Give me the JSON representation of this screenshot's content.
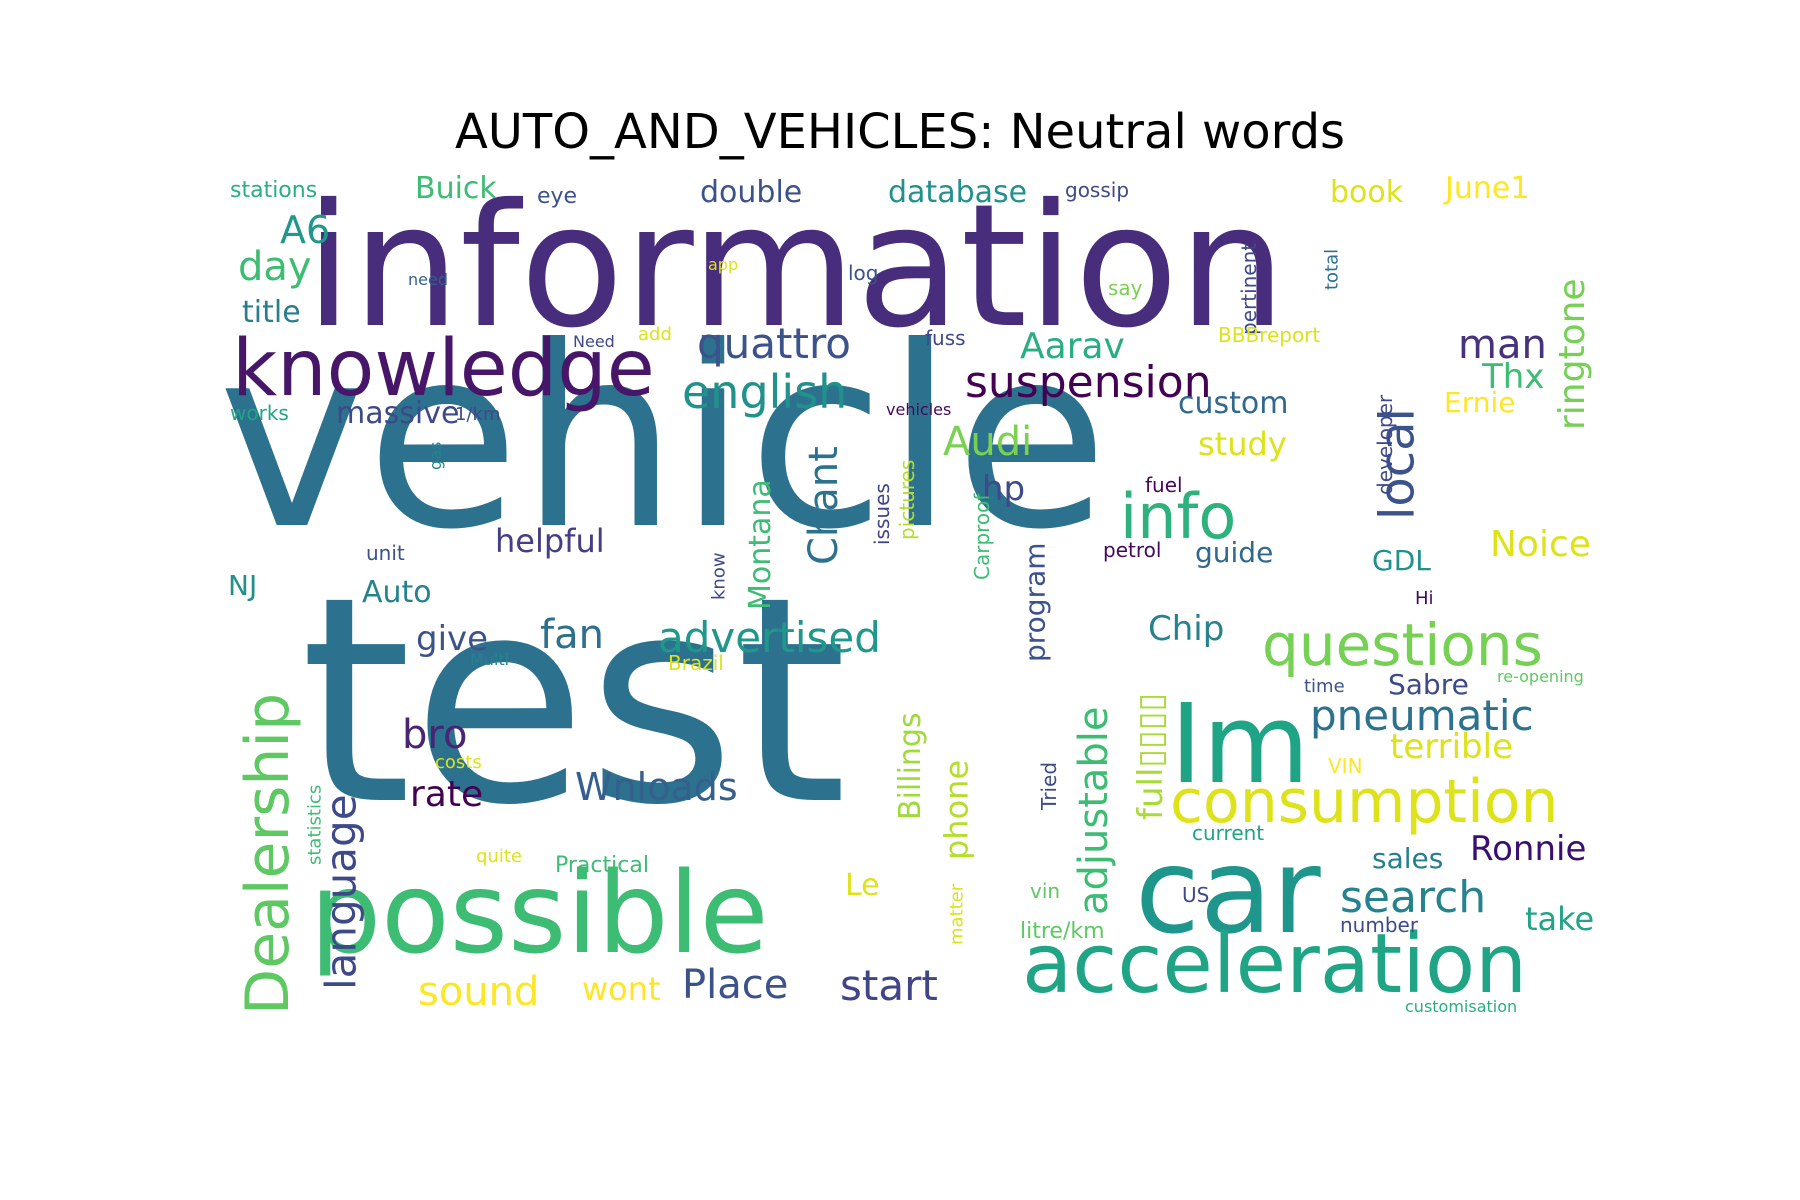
{
  "title": "AUTO_AND_VEHICLES: Neutral words",
  "words": [
    {
      "text": "vehicle",
      "color": "#2c728e"
    },
    {
      "text": "test",
      "color": "#2c728e"
    },
    {
      "text": "information",
      "color": "#472d7b"
    },
    {
      "text": "possible",
      "color": "#3dbc74"
    },
    {
      "text": "car",
      "color": "#1f968b"
    },
    {
      "text": "acceleration",
      "color": "#20a486"
    },
    {
      "text": "Im",
      "color": "#20a486"
    },
    {
      "text": "knowledge",
      "color": "#481668"
    },
    {
      "text": "questions",
      "color": "#75d054"
    },
    {
      "text": "consumption",
      "color": "#dde318"
    },
    {
      "text": "Dealership",
      "color": "#5ec962"
    },
    {
      "text": "info",
      "color": "#2db27d"
    },
    {
      "text": "local",
      "color": "#3b528b"
    },
    {
      "text": "english",
      "color": "#21918c"
    },
    {
      "text": "suspension",
      "color": "#440154"
    },
    {
      "text": "advertised",
      "color": "#1f988b"
    },
    {
      "text": "quattro",
      "color": "#3b528b"
    },
    {
      "text": "pneumatic",
      "color": "#2c728e"
    },
    {
      "text": "search",
      "color": "#26828e"
    },
    {
      "text": "ringtone",
      "color": "#75d054"
    },
    {
      "text": "language",
      "color": "#3e4989"
    },
    {
      "text": "adjustable",
      "color": "#3dbc74"
    },
    {
      "text": "man",
      "color": "#46327e"
    },
    {
      "text": "Chant",
      "color": "#2c728e"
    },
    {
      "text": "sound",
      "color": "#fde725"
    },
    {
      "text": "start",
      "color": "#414487"
    },
    {
      "text": "Place",
      "color": "#3b528b"
    },
    {
      "text": "Wnloads",
      "color": "#355f8d"
    },
    {
      "text": "fan",
      "color": "#2d708e"
    },
    {
      "text": "bro",
      "color": "#482475"
    },
    {
      "text": "rate",
      "color": "#440154"
    },
    {
      "text": "give",
      "color": "#3b528b"
    },
    {
      "text": "Aarav",
      "color": "#29af7f"
    },
    {
      "text": "Audi",
      "color": "#7ad151"
    },
    {
      "text": "day",
      "color": "#3dbc74"
    },
    {
      "text": "A6",
      "color": "#1f988b"
    },
    {
      "text": "title",
      "color": "#277f8e"
    },
    {
      "text": "phone",
      "color": "#b5de2b"
    },
    {
      "text": "Montana",
      "color": "#3dbc74"
    },
    {
      "text": "Billings",
      "color": "#a0da39"
    },
    {
      "text": "terrible",
      "color": "#dde318"
    },
    {
      "text": "full▯▯▯▯",
      "color": "#a8db34"
    },
    {
      "text": "Chip",
      "color": "#26828e"
    },
    {
      "text": "Sabre",
      "color": "#3e4a89"
    },
    {
      "text": "Ronnie",
      "color": "#3b0f70"
    },
    {
      "text": "take",
      "color": "#20a486"
    },
    {
      "text": "Noice",
      "color": "#dde318"
    },
    {
      "text": "custom",
      "color": "#31688e"
    },
    {
      "text": "study",
      "color": "#dde318"
    },
    {
      "text": "Thx",
      "color": "#3dbc74"
    },
    {
      "text": "hp",
      "color": "#3e4989"
    },
    {
      "text": "helpful",
      "color": "#433e85"
    },
    {
      "text": "Auto",
      "color": "#26828e"
    },
    {
      "text": "program",
      "color": "#3b528b"
    },
    {
      "text": "massive",
      "color": "#3e4989"
    },
    {
      "text": "double",
      "color": "#3b528b"
    },
    {
      "text": "database",
      "color": "#21918c"
    },
    {
      "text": "Buick",
      "color": "#3dbc74"
    },
    {
      "text": "book",
      "color": "#dde318"
    },
    {
      "text": "June1",
      "color": "#fde725"
    },
    {
      "text": "guide",
      "color": "#31688e"
    },
    {
      "text": "GDL",
      "color": "#21918c"
    },
    {
      "text": "NJ",
      "color": "#21918c"
    },
    {
      "text": "Ernie",
      "color": "#fde725"
    },
    {
      "text": "sales",
      "color": "#277f8e"
    },
    {
      "text": "Le",
      "color": "#dde318"
    },
    {
      "text": "wont",
      "color": "#fde725"
    },
    {
      "text": "stations",
      "color": "#29af7f"
    },
    {
      "text": "eye",
      "color": "#3b528b"
    },
    {
      "text": "gossip",
      "color": "#3e4989"
    },
    {
      "text": "pertinent",
      "color": "#3e4a89"
    },
    {
      "text": "total",
      "color": "#2c728e"
    },
    {
      "text": "need",
      "color": "#355f8d"
    },
    {
      "text": "app",
      "color": "#dde318"
    },
    {
      "text": "log",
      "color": "#3b528b"
    },
    {
      "text": "say",
      "color": "#7ad151"
    },
    {
      "text": "Need",
      "color": "#3e4989"
    },
    {
      "text": "add",
      "color": "#dde318"
    },
    {
      "text": "fuss",
      "color": "#3e4989"
    },
    {
      "text": "BBBreport",
      "color": "#dde318"
    },
    {
      "text": "works",
      "color": "#20a486"
    },
    {
      "text": "1/km",
      "color": "#3e4989"
    },
    {
      "text": "vehicles",
      "color": "#46085c"
    },
    {
      "text": "gas",
      "color": "#26828e"
    },
    {
      "text": "developer",
      "color": "#3e4989"
    },
    {
      "text": "fuel",
      "color": "#46085c"
    },
    {
      "text": "pictures",
      "color": "#b5de2b"
    },
    {
      "text": "issues",
      "color": "#414487"
    },
    {
      "text": "Carproof",
      "color": "#3dbc74"
    },
    {
      "text": "petrol",
      "color": "#46085c"
    },
    {
      "text": "know",
      "color": "#3e4989"
    },
    {
      "text": "unit",
      "color": "#3b528b"
    },
    {
      "text": "Hi",
      "color": "#46085c"
    },
    {
      "text": "Multi",
      "color": "#26828e"
    },
    {
      "text": "Brazil",
      "color": "#dde318"
    },
    {
      "text": "time",
      "color": "#3b528b"
    },
    {
      "text": "re-opening",
      "color": "#5ec962"
    },
    {
      "text": "costs",
      "color": "#dde318"
    },
    {
      "text": "statistics",
      "color": "#3dbc74"
    },
    {
      "text": "VIN",
      "color": "#fde725"
    },
    {
      "text": "Tried",
      "color": "#3e4989"
    },
    {
      "text": "current",
      "color": "#20a486"
    },
    {
      "text": "quite",
      "color": "#dde318"
    },
    {
      "text": "Practical",
      "color": "#3dbc74"
    },
    {
      "text": "matter",
      "color": "#dde318"
    },
    {
      "text": "vin",
      "color": "#5ec962"
    },
    {
      "text": "US",
      "color": "#3e4a89"
    },
    {
      "text": "litre/km",
      "color": "#5ec962"
    },
    {
      "text": "number",
      "color": "#3e4a89"
    },
    {
      "text": "customisation",
      "color": "#29af7f"
    }
  ]
}
